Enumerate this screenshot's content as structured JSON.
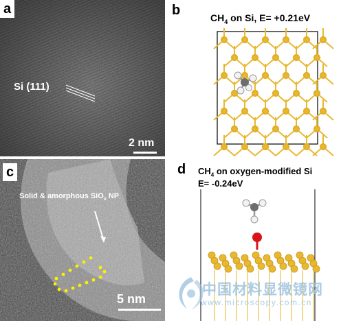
{
  "panel_a": {
    "letter": "a",
    "lattice_label": "Si (111)",
    "scale_label": "2 nm"
  },
  "panel_b": {
    "letter": "b",
    "title_prefix": "CH",
    "title_sub": "4",
    "title_suffix": " on Si, E= +0.21eV"
  },
  "panel_c": {
    "letter": "c",
    "annotation_prefix": "Solid & amorphous SiO",
    "annotation_sub": "x",
    "annotation_suffix": " NP",
    "scale_label": "5 nm"
  },
  "panel_d": {
    "letter": "d",
    "title_prefix": "CH",
    "title_sub": "4",
    "title_suffix": " on oxygen-modified Si",
    "energy": "E= -0.24eV"
  },
  "watermark": {
    "name": "中国材料显微镜网",
    "url": "www.microscopy.com.cn"
  },
  "colors": {
    "silicon": "#e8b830",
    "oxygen": "#d8141a",
    "carbon": "#6e6e6e",
    "hydrogen": "#f2f2f2",
    "watermark": "#9ec3de"
  }
}
